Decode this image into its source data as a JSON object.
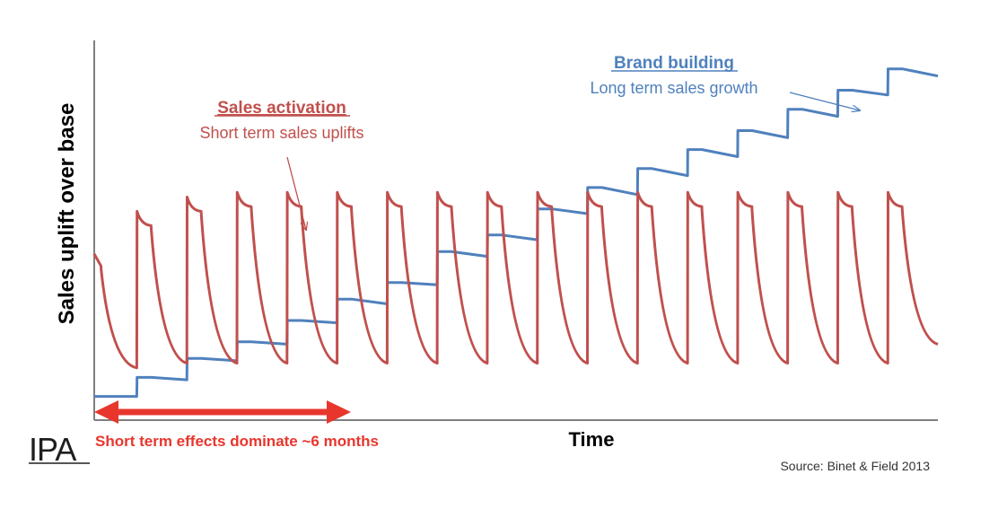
{
  "chart_data": {
    "type": "line",
    "title": "",
    "xlabel": "Time",
    "ylabel": "Sales uplift over base",
    "x_ticks": "none",
    "y_ticks": "none",
    "grid": false,
    "x": [
      0,
      0.27,
      0.28,
      1.7,
      1.71,
      2.27,
      2.28,
      3.7,
      3.71,
      4.27,
      4.28,
      5.7,
      5.71,
      6.27,
      6.28,
      7.7,
      7.71,
      8.27,
      8.28,
      9.7,
      9.71,
      10.27,
      10.28,
      11.7,
      11.71,
      12.27,
      12.28,
      13.7,
      13.71,
      14.27,
      14.28,
      15.7,
      15.71,
      16.27,
      16.28,
      17.7,
      17.71,
      18.27,
      18.28,
      19.7,
      19.71,
      20.27,
      20.28,
      21.7,
      21.71,
      22.27,
      22.28,
      23.7,
      23.71,
      24.27,
      24.28,
      25.7,
      25.71,
      26.27,
      26.28,
      27.7,
      27.71,
      28.27,
      28.28,
      29.7,
      29.71,
      30.27,
      30.28,
      31.7,
      31.71,
      32.27,
      32.28,
      33.7
    ],
    "series": [
      {
        "key": "brand",
        "values": [
          0.1,
          0.1,
          0.1,
          0.1,
          0.18,
          0.18,
          0.18,
          0.17,
          0.26,
          0.26,
          0.26,
          0.25,
          0.33,
          0.33,
          0.33,
          0.32,
          0.42,
          0.42,
          0.42,
          0.41,
          0.51,
          0.51,
          0.51,
          0.49,
          0.58,
          0.58,
          0.58,
          0.57,
          0.71,
          0.71,
          0.71,
          0.69,
          0.78,
          0.78,
          0.78,
          0.76,
          0.89,
          0.89,
          0.89,
          0.87,
          0.98,
          0.98,
          0.98,
          0.95,
          1.06,
          1.06,
          1.06,
          1.03,
          1.14,
          1.14,
          1.14,
          1.11,
          1.22,
          1.22,
          1.22,
          1.19,
          1.31,
          1.31,
          1.31,
          1.28,
          1.39,
          1.39,
          1.39,
          1.37,
          1.48,
          1.48,
          1.48,
          1.45
        ]
      },
      {
        "key": "activation",
        "values": [
          0.7,
          0.65,
          0.63,
          0.22,
          0.88,
          0.82,
          0.8,
          0.24,
          0.94,
          0.88,
          0.86,
          0.24,
          0.96,
          0.9,
          0.88,
          0.24,
          0.96,
          0.9,
          0.88,
          0.24,
          0.96,
          0.9,
          0.88,
          0.24,
          0.96,
          0.9,
          0.88,
          0.24,
          0.96,
          0.9,
          0.88,
          0.24,
          0.96,
          0.9,
          0.88,
          0.24,
          0.96,
          0.9,
          0.88,
          0.24,
          0.96,
          0.9,
          0.88,
          0.24,
          0.96,
          0.9,
          0.88,
          0.24,
          0.96,
          0.9,
          0.88,
          0.24,
          0.96,
          0.9,
          0.88,
          0.24,
          0.96,
          0.9,
          0.88,
          0.24,
          0.96,
          0.9,
          0.88,
          0.24,
          0.96,
          0.9,
          0.88,
          0.32
        ]
      }
    ],
    "xlim": [
      0,
      33.7
    ],
    "ylim": [
      0,
      1.6
    ],
    "annotations": {
      "sales_activation_title": "Sales activation",
      "sales_activation_sub": "Short term sales uplifts",
      "brand_building_title": "Brand building",
      "brand_building_sub": "Long term sales growth",
      "short_term_note": "Short term effects dominate ~6 months",
      "source": "Source: Binet & Field 2013"
    },
    "colors": {
      "brand": "#4f81bd",
      "activation": "#c0504d",
      "arrow_red": "#e8362d",
      "axis": "#7f7f7f",
      "logo": "#1f1f1f",
      "annotation_red": "#c0504d"
    },
    "logo_text": "IPA"
  }
}
